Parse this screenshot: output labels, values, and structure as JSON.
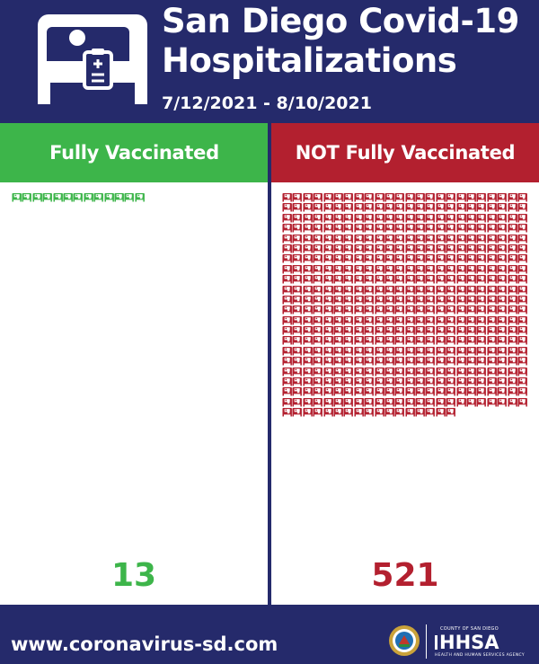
{
  "header": {
    "icon": "hospital-bed-icon",
    "title_line1": "San Diego Covid-19",
    "title_line2": "Hospitalizations",
    "date_range": "7/12/2021 - 8/10/2021"
  },
  "panels": {
    "vaccinated": {
      "label": "Fully Vaccinated",
      "count_text": "13",
      "count": 13,
      "color": "#3db54a",
      "icon": "hospital-bed-icon"
    },
    "unvaccinated": {
      "label": "NOT Fully Vaccinated",
      "count_text": "521",
      "count": 521,
      "color": "#b3202f",
      "icon": "hospital-bed-icon"
    }
  },
  "footer": {
    "url": "www.coronavirus-sd.com",
    "seal_icon": "county-seal-icon",
    "agency_top": "COUNTY OF SAN DIEGO",
    "agency_name": "HHSA",
    "agency_sub": "HEALTH AND HUMAN SERVICES AGENCY"
  },
  "colors": {
    "navy": "#252a6b",
    "green": "#3db54a",
    "red": "#b3202f",
    "white": "#ffffff"
  }
}
